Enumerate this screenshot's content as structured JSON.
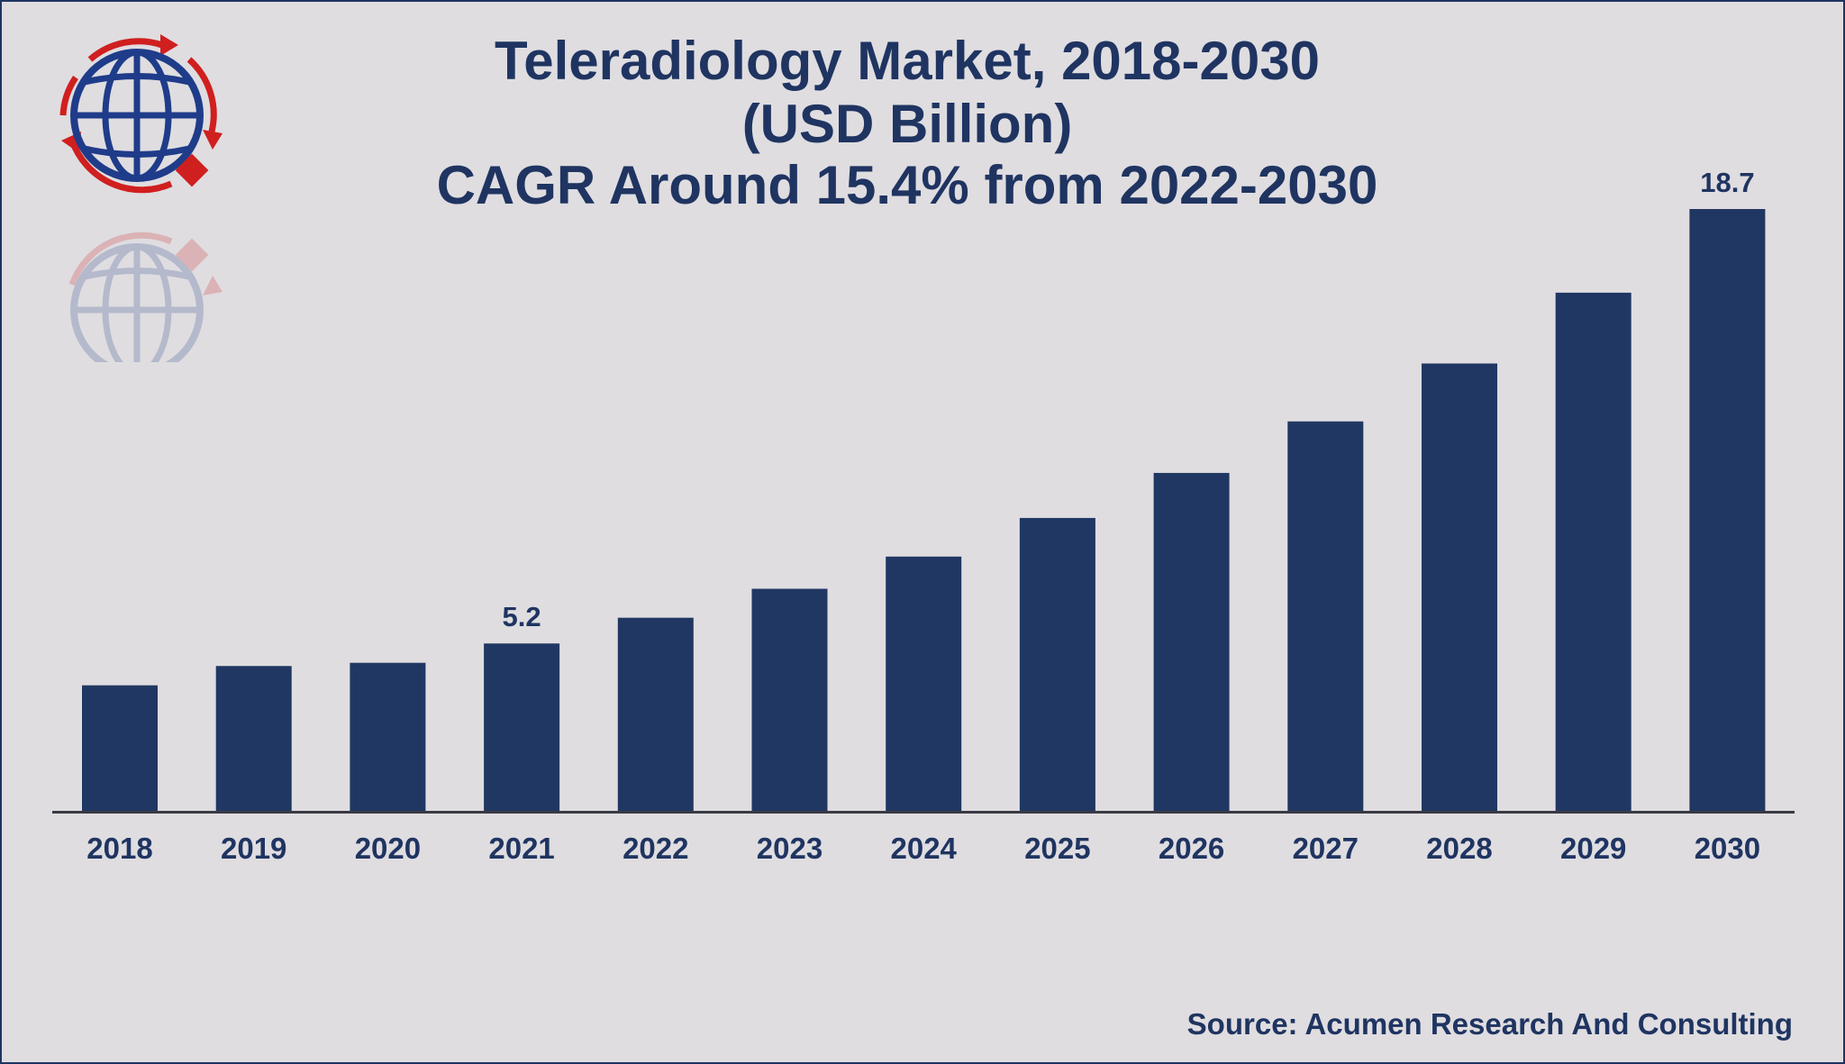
{
  "colors": {
    "background": "#dfdde0",
    "bar": "#213763",
    "text": "#1f3461",
    "axis": "#3a3a44",
    "logo_red": "#d01f1f"
  },
  "chart_data": {
    "type": "bar",
    "title_lines": [
      "Teleradiology Market, 2018-2030",
      "(USD Billion)",
      "CAGR Around 15.4% from 2022-2030"
    ],
    "categories": [
      "2018",
      "2019",
      "2020",
      "2021",
      "2022",
      "2023",
      "2024",
      "2025",
      "2026",
      "2027",
      "2028",
      "2029",
      "2030"
    ],
    "values": [
      3.9,
      4.5,
      4.6,
      5.2,
      6.0,
      6.9,
      7.9,
      9.1,
      10.5,
      12.1,
      13.9,
      16.1,
      18.7
    ],
    "data_labels": {
      "3": "5.2",
      "12": "18.7"
    },
    "ylim": [
      0,
      20
    ],
    "grid": false,
    "legend": "none"
  },
  "source": "Source: Acumen Research And Consulting",
  "icons": [
    "globe-logo-icon"
  ]
}
